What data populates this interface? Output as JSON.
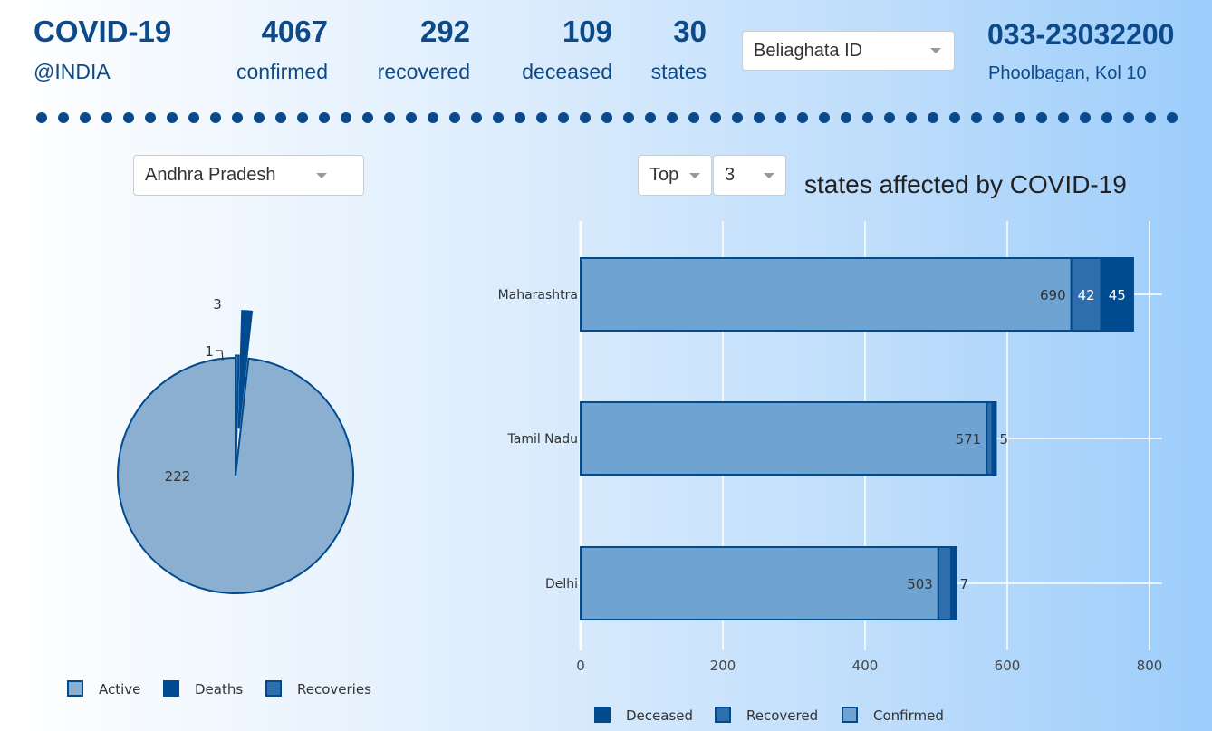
{
  "header": {
    "title": "COVID-19",
    "subtitle": "@INDIA",
    "stats": [
      {
        "value": "4067",
        "label": "confirmed"
      },
      {
        "value": "292",
        "label": "recovered"
      },
      {
        "value": "109",
        "label": "deceased"
      },
      {
        "value": "30",
        "label": "states"
      }
    ],
    "location_select": "Beliaghata ID",
    "phone": "033-23032200",
    "address": "Phoolbagan, Kol 10"
  },
  "controls": {
    "state_select": "Andhra Pradesh",
    "rank_select": "Top",
    "count_select": "3"
  },
  "colors": {
    "dark": "#004a8f",
    "mid": "#2f6ead",
    "light_bar": "#6fa3d2",
    "light_pie": "#8aafd0"
  },
  "chart_data": [
    {
      "type": "pie",
      "labels": [
        "Active",
        "Deaths",
        "Recoveries"
      ],
      "values": [
        222,
        3,
        1
      ],
      "legend": [
        "Active",
        "Deaths",
        "Recoveries"
      ],
      "legend_position": "bottom"
    },
    {
      "type": "bar",
      "orientation": "horizontal",
      "stacked": true,
      "title": "states affected by COVID-19",
      "categories": [
        "Maharashtra",
        "Tamil Nadu",
        "Delhi"
      ],
      "series": [
        {
          "name": "Confirmed",
          "values": [
            690,
            571,
            503
          ]
        },
        {
          "name": "Recovered",
          "values": [
            42,
            8,
            18
          ]
        },
        {
          "name": "Deceased",
          "values": [
            45,
            5,
            7
          ]
        }
      ],
      "xlim": [
        0,
        800
      ],
      "x_ticks": [
        "0",
        "200",
        "400",
        "600",
        "800"
      ],
      "legend": [
        "Deceased",
        "Recovered",
        "Confirmed"
      ],
      "legend_position": "bottom",
      "grid": true
    }
  ]
}
